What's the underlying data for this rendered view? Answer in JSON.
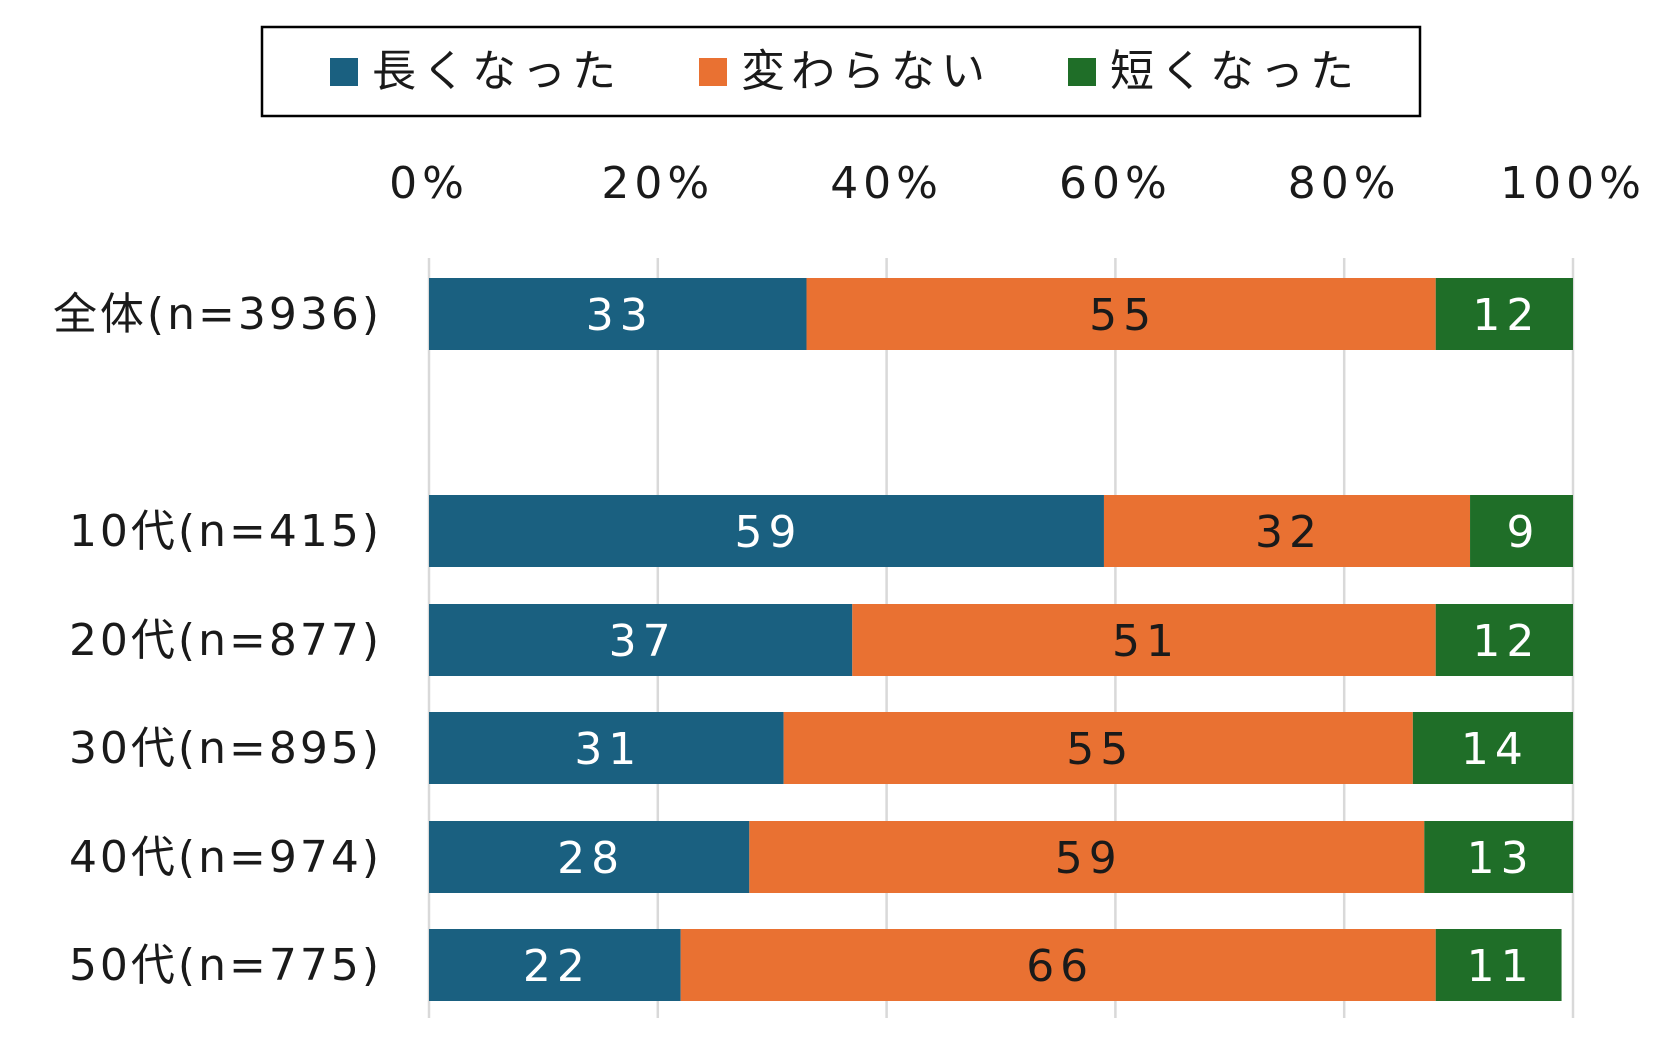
{
  "chart_data": {
    "type": "bar",
    "orientation": "horizontal",
    "stacked": true,
    "categories": [
      "全体(n=3936)",
      "10代(n=415)",
      "20代(n=877)",
      "30代(n=895)",
      "40代(n=974)",
      "50代(n=775)"
    ],
    "series": [
      {
        "name": "長くなった",
        "color": "#1a6080",
        "values": [
          33,
          59,
          37,
          31,
          28,
          22
        ]
      },
      {
        "name": "変わらない",
        "color": "#e97132",
        "values": [
          55,
          32,
          51,
          55,
          59,
          66
        ]
      },
      {
        "name": "短くなった",
        "color": "#1f6e28",
        "values": [
          12,
          9,
          12,
          14,
          13,
          11
        ]
      }
    ],
    "xlim": [
      0,
      100
    ],
    "x_ticks": [
      "0%",
      "20%",
      "40%",
      "60%",
      "80%",
      "100%"
    ],
    "grid": true,
    "legend_position": "top",
    "data_label_colors": [
      "#ffffff",
      "#1a1a1a",
      "#ffffff"
    ]
  }
}
